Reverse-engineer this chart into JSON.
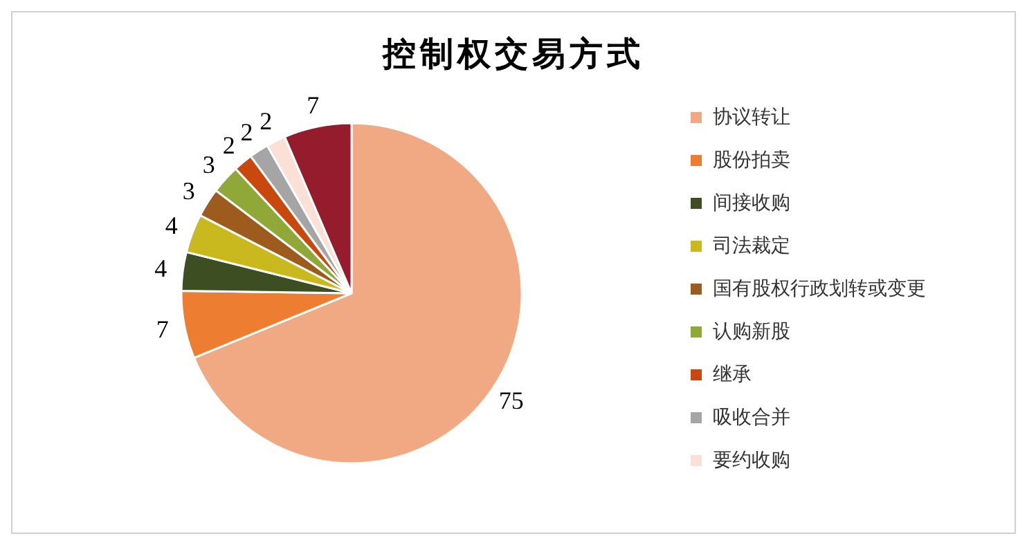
{
  "chart_data": {
    "type": "pie",
    "title": "控制权交易方式",
    "categories": [
      "协议转让",
      "股份拍卖",
      "间接收购",
      "司法裁定",
      "国有股权行政划转或变更",
      "认购新股",
      "继承",
      "吸收合并",
      "要约收购",
      null
    ],
    "values": [
      75,
      7,
      4,
      4,
      3,
      3,
      2,
      2,
      2,
      7
    ],
    "colors": [
      "#f0a982",
      "#ed7d31",
      "#3d4f22",
      "#c9b81e",
      "#9e5b1e",
      "#8fa838",
      "#c9480e",
      "#a5a5a5",
      "#fbe0d5",
      "#951c2c"
    ],
    "data_labels": true,
    "legend": "right"
  }
}
